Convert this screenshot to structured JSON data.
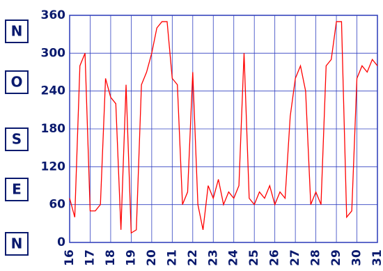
{
  "chart_data": {
    "type": "line",
    "compass_labels": [
      "N",
      "O",
      "S",
      "E",
      "N"
    ],
    "x": [
      16,
      16.25,
      16.5,
      16.75,
      17,
      17.25,
      17.5,
      17.75,
      18,
      18.25,
      18.5,
      18.75,
      19,
      19.25,
      19.5,
      19.75,
      20,
      20.25,
      20.5,
      20.75,
      21,
      21.25,
      21.5,
      21.75,
      22,
      22.25,
      22.5,
      22.75,
      23,
      23.25,
      23.5,
      23.75,
      24,
      24.25,
      24.5,
      24.75,
      25,
      25.25,
      25.5,
      25.75,
      26,
      26.25,
      26.5,
      26.75,
      27,
      27.25,
      27.5,
      27.75,
      28,
      28.25,
      28.5,
      28.75,
      29,
      29.25,
      29.5,
      29.75,
      30,
      30.25,
      30.5,
      30.75,
      31
    ],
    "series": [
      {
        "color": "#ff0000",
        "values": [
          70,
          40,
          280,
          300,
          50,
          50,
          60,
          260,
          230,
          220,
          20,
          250,
          15,
          20,
          250,
          270,
          300,
          340,
          350,
          350,
          260,
          250,
          60,
          80,
          270,
          60,
          20,
          90,
          70,
          100,
          60,
          80,
          70,
          90,
          300,
          70,
          60,
          80,
          70,
          90,
          60,
          80,
          70,
          200,
          260,
          280,
          240,
          60,
          80,
          60,
          280,
          290,
          350,
          350,
          40,
          50,
          260,
          280,
          270,
          290,
          280
        ]
      }
    ],
    "xlim": [
      16,
      31
    ],
    "xticks": [
      16,
      17,
      18,
      19,
      20,
      21,
      22,
      23,
      24,
      25,
      26,
      27,
      28,
      29,
      30,
      31
    ],
    "ylim": [
      0,
      360
    ],
    "yticks": [
      0,
      60,
      120,
      180,
      240,
      300,
      360
    ],
    "grid": true
  }
}
